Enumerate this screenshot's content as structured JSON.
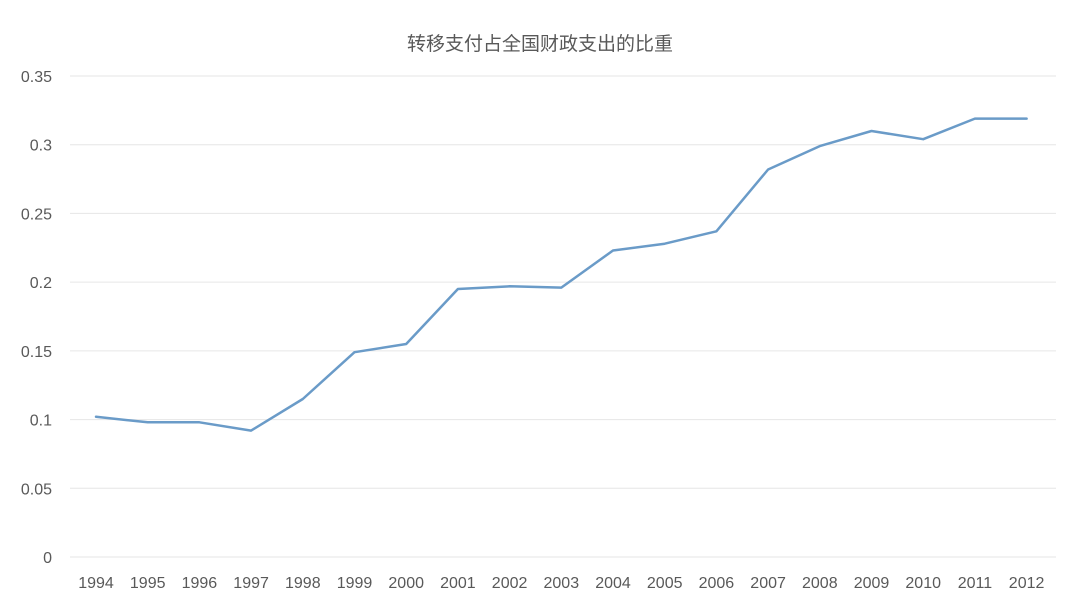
{
  "chart_data": {
    "type": "line",
    "title": "转移支付占全国财政支出的比重",
    "xlabel": "",
    "ylabel": "",
    "categories": [
      "1994",
      "1995",
      "1996",
      "1997",
      "1998",
      "1999",
      "2000",
      "2001",
      "2002",
      "2003",
      "2004",
      "2005",
      "2006",
      "2007",
      "2008",
      "2009",
      "2010",
      "2011",
      "2012"
    ],
    "series": [
      {
        "values": [
          0.102,
          0.098,
          0.098,
          0.092,
          0.115,
          0.149,
          0.155,
          0.195,
          0.197,
          0.196,
          0.223,
          0.228,
          0.237,
          0.282,
          0.299,
          0.31,
          0.304,
          0.319,
          0.319
        ],
        "color": "#6a9bc8"
      }
    ],
    "ylim": [
      0,
      0.35
    ],
    "yticks": [
      "0",
      "0.05",
      "0.1",
      "0.15",
      "0.2",
      "0.25",
      "0.3",
      "0.35"
    ],
    "grid": true,
    "legend": "none"
  }
}
